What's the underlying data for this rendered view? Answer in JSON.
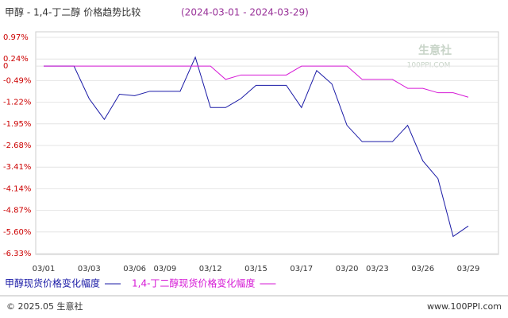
{
  "chart_data": {
    "type": "line",
    "title": "甲醇 - 1,4-丁二醇 价格趋势比较",
    "subtitle": "(2024-03-01 - 2024-03-29)",
    "categories": [
      "03/01",
      null,
      null,
      "03/03",
      null,
      null,
      "03/06",
      null,
      "03/09",
      null,
      null,
      "03/12",
      null,
      null,
      "03/15",
      null,
      null,
      "03/17",
      null,
      null,
      "03/20",
      null,
      "03/23",
      null,
      null,
      "03/26",
      null,
      null,
      "03/29"
    ],
    "series": [
      {
        "name": "甲醇现货价格变化幅度",
        "color": "#1a1aa6",
        "values": [
          0,
          0,
          0,
          -1.1,
          -1.8,
          -0.95,
          -1.0,
          -0.85,
          -0.85,
          -0.85,
          0.3,
          -1.4,
          -1.4,
          -1.1,
          -0.65,
          -0.65,
          -0.65,
          -1.4,
          -0.15,
          -0.6,
          -2.0,
          -2.55,
          -2.55,
          -2.55,
          -2.0,
          -3.2,
          -3.8,
          -5.75,
          -5.4
        ]
      },
      {
        "name": "1,4-丁二醇现货价格变化幅度",
        "color": "#d61ad6",
        "values": [
          0,
          0,
          0,
          0,
          0,
          0,
          0,
          0,
          0,
          0,
          0,
          0,
          -0.45,
          -0.3,
          -0.3,
          -0.3,
          -0.3,
          0,
          0,
          0,
          0,
          -0.45,
          -0.45,
          -0.45,
          -0.75,
          -0.75,
          -0.9,
          -0.9,
          -1.05
        ]
      }
    ],
    "ylim": [
      -6.33,
      0.97
    ],
    "yticks": [
      {
        "value": 0.97,
        "label": "0.97%"
      },
      {
        "value": 0.24,
        "label": "0.24%"
      },
      0,
      {
        "value": -0.49,
        "label": "-0.49%"
      },
      {
        "value": -1.22,
        "label": "-1.22%"
      },
      {
        "value": -1.95,
        "label": "-1.95%"
      },
      {
        "value": -2.68,
        "label": "-2.68%"
      },
      {
        "value": -3.41,
        "label": "-3.41%"
      },
      {
        "value": -4.14,
        "label": "-4.14%"
      },
      {
        "value": -4.87,
        "label": "-4.87%"
      },
      {
        "value": -5.6,
        "label": "-5.60%"
      },
      {
        "value": -6.33,
        "label": "-6.33%"
      }
    ],
    "grid": true,
    "watermark": {
      "name": "生意社",
      "site": "100PPI.COM"
    },
    "footer": {
      "copyright": "© 2025.05 生意社",
      "site": "www.100PPI.com"
    }
  }
}
